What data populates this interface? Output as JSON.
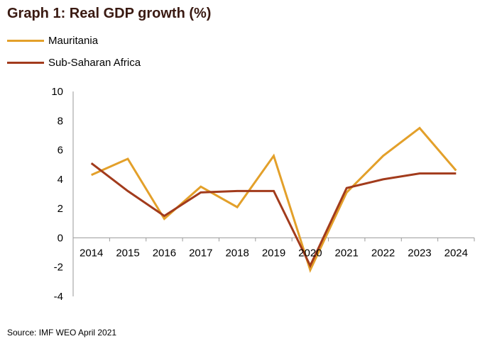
{
  "title": "Graph 1: Real GDP growth (%)",
  "source": "Source: IMF WEO April 2021",
  "legend": [
    {
      "label": "Mauritania",
      "color": "#E3A02A"
    },
    {
      "label": "Sub-Saharan Africa",
      "color": "#A23B1C"
    }
  ],
  "chart_data": {
    "type": "line",
    "title": "Graph 1: Real GDP growth (%)",
    "x": [
      "2014",
      "2015",
      "2016",
      "2017",
      "2018",
      "2019",
      "2020",
      "2021",
      "2022",
      "2023",
      "2024"
    ],
    "ylim": [
      -4,
      10
    ],
    "yticks": [
      -4,
      -2,
      0,
      2,
      4,
      6,
      8,
      10
    ],
    "grid": false,
    "legend_position": "top-left",
    "series": [
      {
        "name": "Mauritania",
        "color": "#E3A02A",
        "values": [
          4.3,
          5.4,
          1.3,
          3.5,
          2.1,
          5.6,
          -2.2,
          3.1,
          5.6,
          7.5,
          4.6
        ]
      },
      {
        "name": "Sub-Saharan Africa",
        "color": "#A23B1C",
        "values": [
          5.1,
          3.2,
          1.5,
          3.1,
          3.2,
          3.2,
          -1.9,
          3.4,
          4.0,
          4.4,
          4.4
        ]
      }
    ]
  }
}
